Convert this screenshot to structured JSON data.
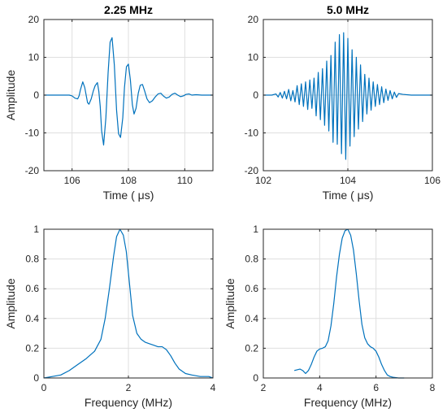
{
  "chart_data": [
    {
      "type": "line",
      "title": "2.25 MHz",
      "xlabel": "Time ( μs)",
      "ylabel": "Amplitude",
      "xlim": [
        105,
        111
      ],
      "ylim": [
        -20,
        20
      ],
      "xticks": [
        106,
        108,
        110
      ],
      "yticks": [
        -20,
        -10,
        0,
        10,
        20
      ],
      "grid": true,
      "x": [
        105.0,
        105.9,
        106.0,
        106.1,
        106.2,
        106.25,
        106.3,
        106.38,
        106.45,
        106.5,
        106.55,
        106.6,
        106.68,
        106.75,
        106.82,
        106.9,
        106.95,
        107.0,
        107.05,
        107.12,
        107.2,
        107.28,
        107.35,
        107.42,
        107.5,
        107.58,
        107.65,
        107.72,
        107.8,
        107.86,
        107.93,
        108.0,
        108.07,
        108.14,
        108.2,
        108.27,
        108.35,
        108.42,
        108.5,
        108.58,
        108.66,
        108.75,
        108.85,
        108.95,
        109.05,
        109.15,
        109.25,
        109.35,
        109.45,
        109.55,
        109.65,
        109.75,
        109.85,
        109.95,
        110.05,
        110.15,
        110.25,
        110.4,
        110.6,
        111.0
      ],
      "series": [
        {
          "color": "#0072BD",
          "values": [
            0.0,
            0.0,
            -0.2,
            -0.8,
            -1.0,
            -0.2,
            1.5,
            3.5,
            2.0,
            0.0,
            -2.0,
            -2.4,
            -1.0,
            1.0,
            2.5,
            3.3,
            1.0,
            -3.0,
            -9.5,
            -13.2,
            -6.0,
            6.0,
            14.0,
            15.2,
            8.0,
            -4.0,
            -10.2,
            -11.2,
            -6.0,
            2.0,
            7.5,
            8.2,
            4.0,
            -2.5,
            -5.0,
            -3.5,
            0.5,
            2.6,
            2.8,
            1.0,
            -1.0,
            -2.0,
            -1.5,
            -0.5,
            0.3,
            0.5,
            -0.3,
            -0.8,
            -0.5,
            0.2,
            0.5,
            0.0,
            -0.4,
            -0.2,
            0.2,
            0.3,
            0.0,
            0.1,
            0.0,
            0.0
          ]
        }
      ]
    },
    {
      "type": "line",
      "title": "5.0 MHz",
      "xlabel": "Time ( μs)",
      "ylabel": "",
      "xlim": [
        102,
        106
      ],
      "ylim": [
        -20,
        20
      ],
      "xticks": [
        102,
        104,
        106
      ],
      "yticks": [
        -20,
        -10,
        0,
        10,
        20
      ],
      "grid": true,
      "x": [
        102.0,
        102.2,
        102.3,
        102.35,
        102.4,
        102.45,
        102.5,
        102.55,
        102.6,
        102.65,
        102.7,
        102.75,
        102.8,
        102.85,
        102.9,
        102.95,
        103.0,
        103.05,
        103.1,
        103.15,
        103.2,
        103.25,
        103.3,
        103.35,
        103.4,
        103.45,
        103.5,
        103.55,
        103.6,
        103.65,
        103.7,
        103.75,
        103.8,
        103.85,
        103.9,
        103.95,
        104.0,
        104.05,
        104.1,
        104.15,
        104.2,
        104.25,
        104.3,
        104.35,
        104.4,
        104.45,
        104.5,
        104.55,
        104.6,
        104.65,
        104.7,
        104.75,
        104.8,
        104.85,
        104.9,
        104.95,
        105.0,
        105.05,
        105.1,
        105.15,
        105.2,
        105.3,
        105.5,
        106.0
      ],
      "series": [
        {
          "color": "#0072BD",
          "values": [
            0.0,
            0.0,
            0.3,
            -0.5,
            0.7,
            -0.8,
            1.0,
            -1.0,
            1.5,
            -1.5,
            1.2,
            -1.8,
            2.5,
            -2.5,
            3.0,
            -3.0,
            3.5,
            -3.8,
            4.0,
            -3.5,
            4.5,
            -5.5,
            6.0,
            -6.5,
            7.0,
            -8.0,
            9.0,
            -9.5,
            10.5,
            -12.5,
            14.0,
            -13.0,
            16.0,
            -15.5,
            16.5,
            -17.0,
            15.0,
            -13.5,
            12.0,
            -11.0,
            10.0,
            -9.0,
            8.0,
            -7.0,
            5.5,
            -5.0,
            4.5,
            -4.0,
            3.5,
            -3.0,
            2.8,
            -2.5,
            2.2,
            -2.0,
            1.6,
            -1.4,
            1.2,
            -1.0,
            0.8,
            -0.6,
            0.4,
            0.2,
            0.0,
            0.0
          ]
        }
      ]
    },
    {
      "type": "line",
      "title": "",
      "xlabel": "Frequency (MHz)",
      "ylabel": "Amplitude",
      "xlim": [
        0,
        4
      ],
      "ylim": [
        0,
        1
      ],
      "xticks": [
        0,
        2,
        4
      ],
      "yticks": [
        0,
        0.2,
        0.4,
        0.6,
        0.8,
        1
      ],
      "grid": true,
      "x": [
        0.0,
        0.2,
        0.4,
        0.6,
        0.8,
        1.0,
        1.2,
        1.35,
        1.45,
        1.55,
        1.65,
        1.72,
        1.8,
        1.88,
        1.95,
        2.02,
        2.1,
        2.2,
        2.3,
        2.4,
        2.5,
        2.6,
        2.7,
        2.8,
        2.9,
        3.0,
        3.1,
        3.2,
        3.35,
        3.5,
        3.7,
        3.9,
        4.0
      ],
      "series": [
        {
          "color": "#0072BD",
          "values": [
            0.0,
            0.01,
            0.02,
            0.05,
            0.09,
            0.13,
            0.18,
            0.26,
            0.4,
            0.6,
            0.82,
            0.95,
            1.0,
            0.96,
            0.85,
            0.65,
            0.42,
            0.3,
            0.26,
            0.24,
            0.23,
            0.22,
            0.21,
            0.21,
            0.19,
            0.15,
            0.1,
            0.06,
            0.03,
            0.02,
            0.01,
            0.01,
            0.0
          ]
        }
      ]
    },
    {
      "type": "line",
      "title": "",
      "xlabel": "Frequency (MHz)",
      "ylabel": "Amplitude",
      "xlim": [
        2,
        8
      ],
      "ylim": [
        0,
        1
      ],
      "xticks": [
        2,
        4,
        6,
        8
      ],
      "yticks": [
        0,
        0.2,
        0.4,
        0.6,
        0.8,
        1
      ],
      "grid": true,
      "x": [
        3.1,
        3.2,
        3.3,
        3.4,
        3.5,
        3.6,
        3.7,
        3.8,
        3.9,
        4.0,
        4.1,
        4.2,
        4.3,
        4.4,
        4.5,
        4.6,
        4.7,
        4.8,
        4.9,
        5.0,
        5.1,
        5.2,
        5.3,
        5.4,
        5.5,
        5.6,
        5.7,
        5.8,
        5.9,
        6.0,
        6.1,
        6.2,
        6.3,
        6.4,
        6.5,
        6.6,
        6.8,
        7.0
      ],
      "series": [
        {
          "color": "#0072BD",
          "values": [
            0.05,
            0.055,
            0.06,
            0.05,
            0.03,
            0.05,
            0.09,
            0.14,
            0.18,
            0.195,
            0.2,
            0.21,
            0.25,
            0.35,
            0.5,
            0.68,
            0.83,
            0.94,
            0.99,
            1.0,
            0.96,
            0.86,
            0.7,
            0.52,
            0.36,
            0.27,
            0.23,
            0.21,
            0.2,
            0.18,
            0.14,
            0.09,
            0.05,
            0.02,
            0.01,
            0.005,
            0.0,
            0.0
          ]
        }
      ]
    }
  ]
}
